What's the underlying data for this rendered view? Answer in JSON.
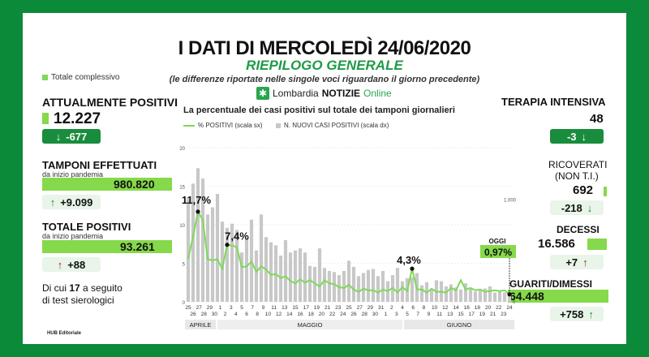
{
  "header": {
    "title": "I DATI DI MERCOLEDÌ 24/06/2020",
    "subtitle": "RIEPILOGO GENERALE",
    "note": "(le differenze riportate nelle singole voci riguardano il giorno precedente)",
    "brand_a": "Lombardia",
    "brand_b": "NOTIZIE",
    "brand_c": "Online"
  },
  "legend_total": "Totale complessivo",
  "left": {
    "positivi_label": "ATTUALMENTE POSITIVI",
    "positivi_value": "12.227",
    "positivi_delta": "-677",
    "tamponi_label": "TAMPONI EFFETTUATI",
    "tamponi_sub": "da inizio pandemia",
    "tamponi_value": "980.820",
    "tamponi_delta": "+9.099",
    "totpos_label": "TOTALE POSITIVI",
    "totpos_sub": "da inizio pandemia",
    "totpos_value": "93.261",
    "totpos_delta": "+88",
    "sierologici_a": "Di cui ",
    "sierologici_n": "17",
    "sierologici_b": " a seguito",
    "sierologici_c": "di test sierologici"
  },
  "right": {
    "ti_label": "TERAPIA INTENSIVA",
    "ti_value": "48",
    "ti_delta": "-3",
    "ric_label_a": "RICOVERATI",
    "ric_label_b": "(NON T.I.)",
    "ric_value": "692",
    "ric_delta": "-218",
    "dec_label": "DECESSI",
    "dec_value": "16.586",
    "dec_delta": "+7",
    "gua_label": "GUARITI/DIMESSI",
    "gua_value": "64.448",
    "gua_delta": "+758"
  },
  "colors": {
    "bg": "#0b8a3a",
    "accent": "#86d94a",
    "line": "#7ed957",
    "bars": "#c8c8c8",
    "down": "#1a8c3e",
    "up": "#b22a2a"
  },
  "chart_data": {
    "type": "line",
    "title": "La percentuale dei casi positivi sul totale dei tamponi giornalieri",
    "legend": [
      "% POSITIVI (scala sx)",
      "N. NUOVI CASI POSITIVI (scala dx)"
    ],
    "left_ticks": [
      "0",
      "5",
      "10",
      "15",
      "20"
    ],
    "right_ticks": [
      "1.000"
    ],
    "ylim_left": [
      0,
      20
    ],
    "ylim_right": [
      0,
      1500
    ],
    "months": [
      "APRILE",
      "MAGGIO",
      "GIUGNO"
    ],
    "tick_labels": [
      "25",
      "27",
      "29",
      "1",
      "3",
      "5",
      "7",
      "9",
      "11",
      "13",
      "15",
      "17",
      "19",
      "21",
      "23",
      "25",
      "27",
      "29",
      "31",
      "2",
      "4",
      "6",
      "8",
      "10",
      "12",
      "14",
      "16",
      "18",
      "20",
      "22",
      "24",
      "26",
      "28",
      "30",
      "26",
      "28",
      "30",
      "2",
      "4",
      "6",
      "8",
      "10",
      "12",
      "14",
      "16",
      "18",
      "20",
      "22",
      "24"
    ],
    "tick_labels_top": [
      "25",
      "27",
      "29",
      "1",
      "3",
      "5",
      "7",
      "9",
      "11",
      "13",
      "15",
      "17",
      "19",
      "21",
      "23",
      "25",
      "27",
      "29",
      "31",
      "2",
      "4",
      "6",
      "8",
      "10",
      "12",
      "14",
      "16",
      "18",
      "20",
      "22",
      "24"
    ],
    "tick_labels_bottom": [
      "26",
      "28",
      "30",
      "2",
      "4",
      "6",
      "8",
      "10",
      "12",
      "14",
      "16",
      "18",
      "20",
      "22",
      "24",
      "26",
      "28",
      "30",
      "1",
      "3",
      "5",
      "7",
      "9",
      "11",
      "13",
      "15",
      "17",
      "19",
      "21",
      "23"
    ],
    "series": [
      {
        "name": "% POSITIVI (scala sx)",
        "values": [
          5.6,
          8.5,
          11.7,
          10.6,
          5.5,
          5.4,
          5.5,
          4.3,
          7.4,
          7.3,
          7.1,
          4.5,
          4.6,
          5.2,
          3.9,
          4.6,
          4.2,
          3.5,
          3.6,
          3.1,
          3.3,
          2.7,
          2.4,
          2.9,
          2.5,
          2.8,
          2.4,
          2.0,
          2.8,
          2.4,
          2.3,
          1.9,
          1.8,
          2.2,
          1.6,
          1.3,
          1.7,
          1.5,
          1.5,
          1.2,
          1.6,
          1.4,
          1.8,
          1.2,
          1.9,
          1.4,
          4.3,
          1.6,
          1.6,
          1.2,
          1.7,
          1.3,
          1.3,
          1.2,
          1.8,
          1.5,
          2.8,
          1.6,
          1.8,
          1.5,
          1.6,
          1.3,
          1.4,
          1.5,
          1.4,
          1.5,
          0.97
        ]
      },
      {
        "name": "N. NUOVI CASI POSITIVI (scala dx)",
        "values": [
          1000,
          1150,
          1300,
          1200,
          850,
          920,
          1050,
          780,
          720,
          760,
          700,
          480,
          620,
          800,
          500,
          850,
          630,
          580,
          550,
          450,
          600,
          480,
          500,
          520,
          480,
          350,
          340,
          520,
          330,
          300,
          290,
          260,
          300,
          400,
          340,
          250,
          280,
          310,
          320,
          250,
          300,
          200,
          260,
          330,
          200,
          230,
          240,
          280,
          160,
          190,
          120,
          210,
          200,
          150,
          170,
          140,
          120,
          180,
          130,
          100,
          110,
          130,
          150,
          90,
          100,
          90,
          88
        ]
      }
    ],
    "annotations": [
      {
        "label": "11,7%",
        "value": 11.7
      },
      {
        "label": "7,4%",
        "value": 7.4
      },
      {
        "label": "4,3%",
        "value": 4.3
      },
      {
        "label": "OGGI",
        "value": 0.97
      },
      {
        "label": "0,97%",
        "value": 0.97
      }
    ]
  },
  "footer": "HUB Editoriale"
}
